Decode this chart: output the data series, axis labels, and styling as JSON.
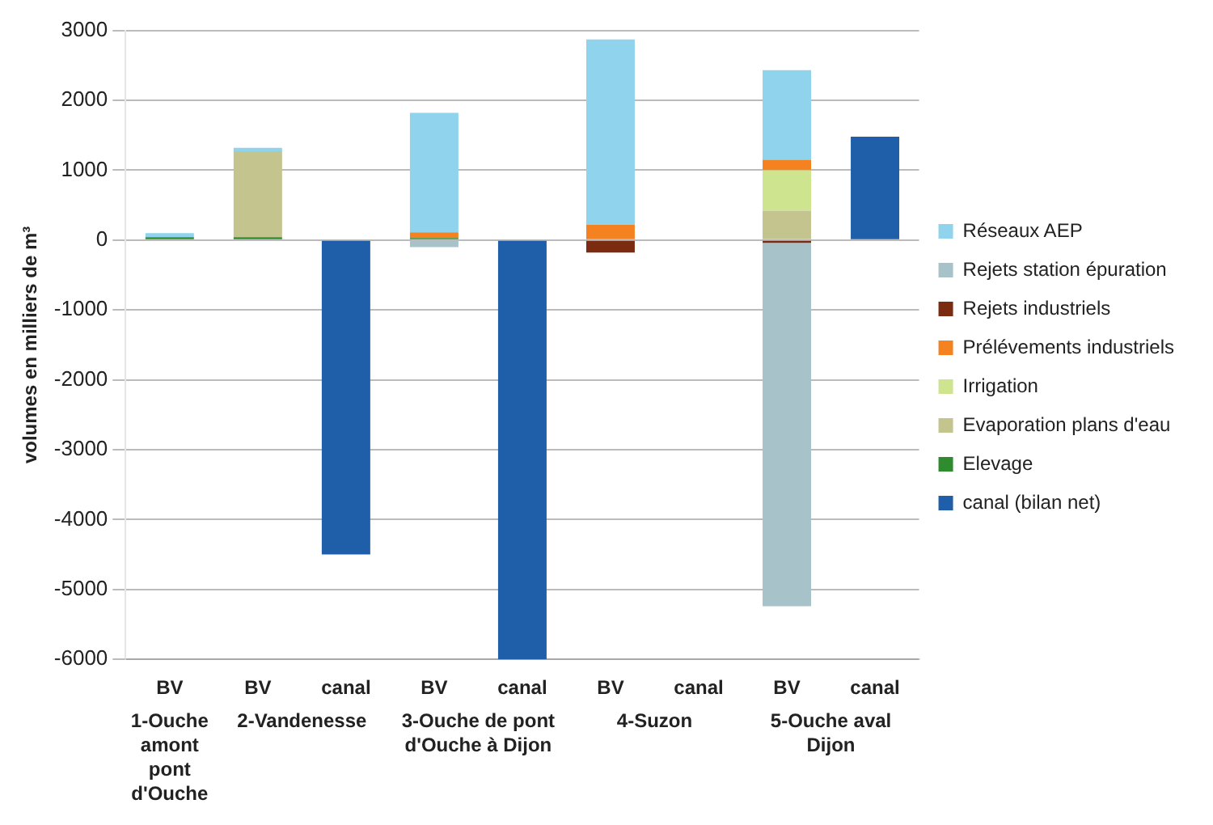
{
  "chart_data": {
    "type": "bar",
    "stacked": true,
    "ylabel": "volumes en milliers de m³",
    "categories": [
      "BV",
      "BV",
      "canal",
      "BV",
      "canal",
      "BV",
      "canal",
      "BV",
      "canal"
    ],
    "annotations": [
      "1-Ouche amont pont d'Ouche",
      "2-Vandenesse",
      "3-Ouche de pont d'Ouche à Dijon",
      "4-Suzon",
      "5-Ouche aval Dijon"
    ],
    "series": [
      {
        "name": "canal (bilan net)",
        "color": "#1f5ea8",
        "values": [
          null,
          null,
          -4500,
          null,
          -6000,
          null,
          null,
          null,
          1480
        ]
      },
      {
        "name": "Elevage",
        "color": "#2e8b2e",
        "values": [
          40,
          40,
          null,
          30,
          null,
          null,
          null,
          null,
          null
        ]
      },
      {
        "name": "Evaporation plans d'eau",
        "color": "#c4c48e",
        "values": [
          null,
          1230,
          null,
          null,
          null,
          null,
          null,
          420,
          null
        ]
      },
      {
        "name": "Irrigation",
        "color": "#cfe48f",
        "values": [
          null,
          null,
          null,
          null,
          null,
          null,
          null,
          580,
          null
        ]
      },
      {
        "name": "Prélévements industriels",
        "color": "#f58220",
        "values": [
          null,
          null,
          null,
          80,
          null,
          220,
          null,
          150,
          null
        ]
      },
      {
        "name": "Rejets industriels",
        "color": "#7b2c10",
        "values": [
          null,
          null,
          null,
          null,
          null,
          -180,
          null,
          -40,
          null
        ]
      },
      {
        "name": "Rejets station épuration",
        "color": "#a7c2c8",
        "values": [
          null,
          null,
          null,
          -100,
          null,
          null,
          null,
          -5200,
          null
        ]
      },
      {
        "name": "Réseaux AEP",
        "color": "#8fd3ec",
        "values": [
          60,
          50,
          null,
          1710,
          null,
          2650,
          null,
          1280,
          null
        ]
      }
    ],
    "ylim": [
      -6000,
      3000
    ],
    "yticks": [
      -6000,
      -5000,
      -4000,
      -3000,
      -2000,
      -1000,
      0,
      1000,
      2000,
      3000
    ],
    "grid": "y",
    "legend": "right"
  }
}
